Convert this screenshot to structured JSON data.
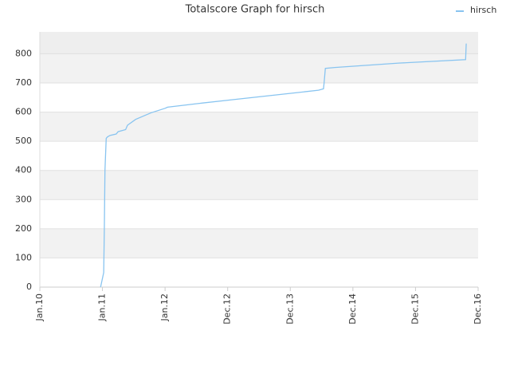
{
  "chart_data": {
    "type": "line",
    "title": "Totalscore Graph for hirsch",
    "x": [
      2010.97,
      2010.98,
      2011.01,
      2011.02,
      2011.03,
      2011.04,
      2011.06,
      2011.08,
      2011.12,
      2011.22,
      2011.25,
      2011.37,
      2011.4,
      2011.53,
      2011.78,
      2012.0,
      2012.04,
      2012.55,
      2013.18,
      2013.82,
      2014.45,
      2014.53,
      2014.54,
      2014.56,
      2014.71,
      2015.73,
      2016.8,
      2016.81
    ],
    "series": [
      {
        "name": "hirsch",
        "color": "#88c4f0",
        "values": [
          0,
          10,
          40,
          50,
          200,
          400,
          510,
          515,
          520,
          525,
          533,
          540,
          555,
          575,
          598,
          613,
          617,
          630,
          645,
          660,
          675,
          680,
          700,
          750,
          753,
          768,
          780,
          835
        ]
      }
    ],
    "xlim": [
      2010,
      2017
    ],
    "xticks": [
      {
        "value": 2010,
        "label": "Jan.10"
      },
      {
        "value": 2011,
        "label": "Jan.11"
      },
      {
        "value": 2012,
        "label": "Jan.12"
      },
      {
        "value": 2013,
        "label": "Dec.12"
      },
      {
        "value": 2014,
        "label": "Dec.13"
      },
      {
        "value": 2015,
        "label": "Dec.14"
      },
      {
        "value": 2016,
        "label": "Dec.15"
      },
      {
        "value": 2017,
        "label": "Dec.16"
      }
    ],
    "ylim": [
      0,
      875
    ],
    "yticks": [
      0,
      100,
      200,
      300,
      400,
      500,
      600,
      700,
      800
    ],
    "grid": true,
    "legend": "top-right"
  }
}
